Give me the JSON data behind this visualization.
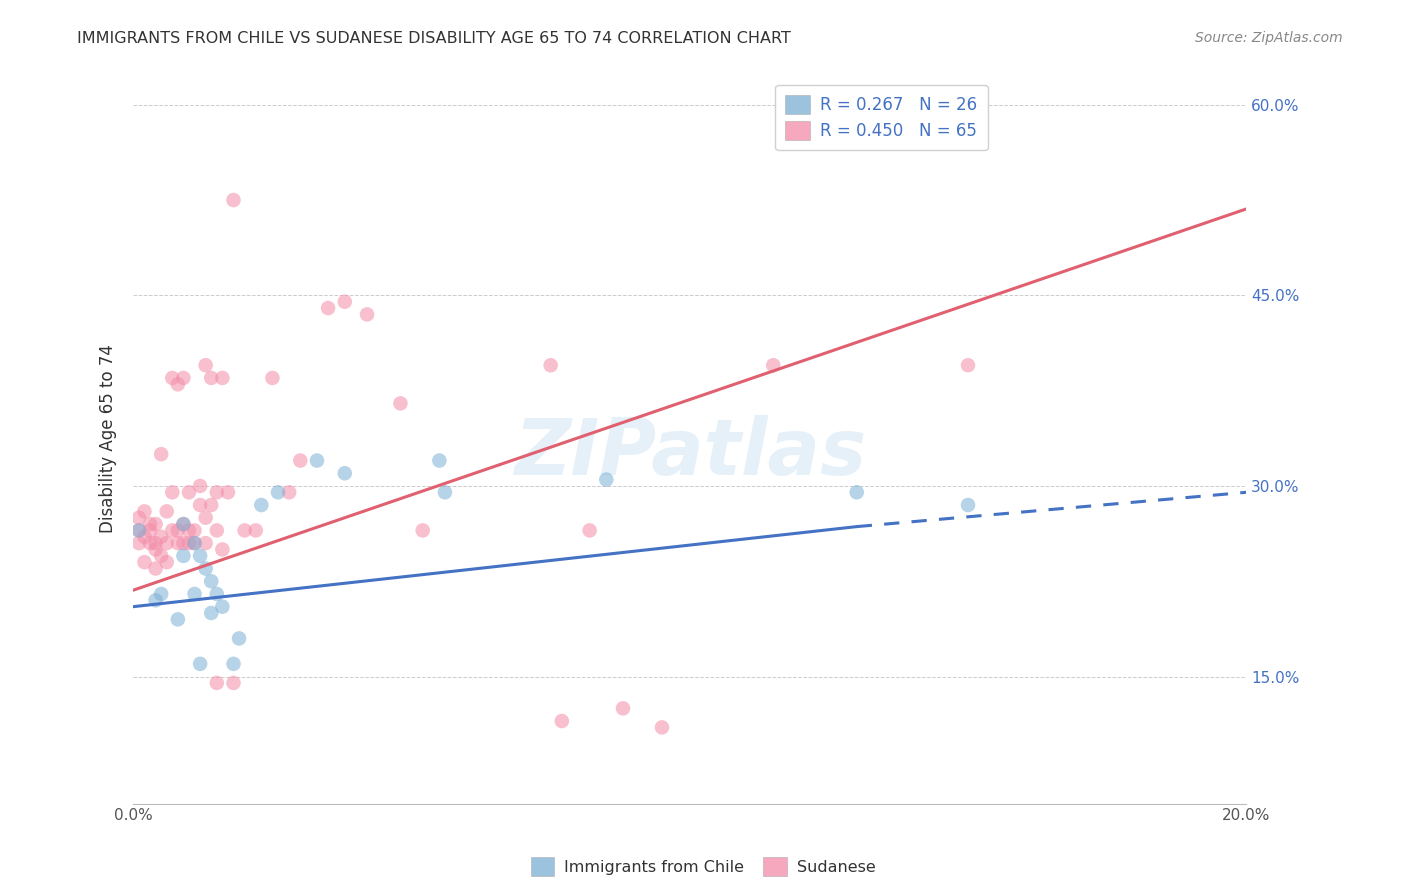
{
  "title": "IMMIGRANTS FROM CHILE VS SUDANESE DISABILITY AGE 65 TO 74 CORRELATION CHART",
  "source": "Source: ZipAtlas.com",
  "ylabel": "Disability Age 65 to 74",
  "xlim": [
    0.0,
    0.2
  ],
  "ylim": [
    0.05,
    0.625
  ],
  "xticks": [
    0.0,
    0.05,
    0.1,
    0.15,
    0.2
  ],
  "yticks": [
    0.15,
    0.3,
    0.45,
    0.6
  ],
  "legend_entries": [
    {
      "label": "R = 0.267   N = 26",
      "color": "#a8c4e0"
    },
    {
      "label": "R = 0.450   N = 65",
      "color": "#f4a7b9"
    }
  ],
  "chile_color": "#7bafd4",
  "sudanese_color": "#f48ca8",
  "chile_line_color": "#4472c4",
  "sudanese_line_color": "#e06070",
  "background_color": "#ffffff",
  "grid_color": "#cccccc",
  "chile_scatter": [
    [
      0.001,
      0.265
    ],
    [
      0.004,
      0.21
    ],
    [
      0.005,
      0.215
    ],
    [
      0.008,
      0.195
    ],
    [
      0.009,
      0.245
    ],
    [
      0.009,
      0.27
    ],
    [
      0.011,
      0.215
    ],
    [
      0.011,
      0.255
    ],
    [
      0.012,
      0.16
    ],
    [
      0.012,
      0.245
    ],
    [
      0.013,
      0.235
    ],
    [
      0.014,
      0.225
    ],
    [
      0.014,
      0.2
    ],
    [
      0.015,
      0.215
    ],
    [
      0.016,
      0.205
    ],
    [
      0.018,
      0.16
    ],
    [
      0.019,
      0.18
    ],
    [
      0.023,
      0.285
    ],
    [
      0.026,
      0.295
    ],
    [
      0.033,
      0.32
    ],
    [
      0.038,
      0.31
    ],
    [
      0.055,
      0.32
    ],
    [
      0.056,
      0.295
    ],
    [
      0.085,
      0.305
    ],
    [
      0.13,
      0.295
    ],
    [
      0.15,
      0.285
    ]
  ],
  "sudanese_scatter": [
    [
      0.001,
      0.255
    ],
    [
      0.001,
      0.265
    ],
    [
      0.001,
      0.275
    ],
    [
      0.002,
      0.24
    ],
    [
      0.002,
      0.26
    ],
    [
      0.002,
      0.28
    ],
    [
      0.003,
      0.255
    ],
    [
      0.003,
      0.265
    ],
    [
      0.003,
      0.27
    ],
    [
      0.004,
      0.235
    ],
    [
      0.004,
      0.25
    ],
    [
      0.004,
      0.255
    ],
    [
      0.004,
      0.27
    ],
    [
      0.005,
      0.245
    ],
    [
      0.005,
      0.26
    ],
    [
      0.005,
      0.325
    ],
    [
      0.006,
      0.24
    ],
    [
      0.006,
      0.255
    ],
    [
      0.006,
      0.28
    ],
    [
      0.007,
      0.265
    ],
    [
      0.007,
      0.295
    ],
    [
      0.007,
      0.385
    ],
    [
      0.008,
      0.255
    ],
    [
      0.008,
      0.265
    ],
    [
      0.008,
      0.38
    ],
    [
      0.009,
      0.255
    ],
    [
      0.009,
      0.27
    ],
    [
      0.009,
      0.385
    ],
    [
      0.01,
      0.255
    ],
    [
      0.01,
      0.265
    ],
    [
      0.01,
      0.295
    ],
    [
      0.011,
      0.255
    ],
    [
      0.011,
      0.265
    ],
    [
      0.012,
      0.285
    ],
    [
      0.012,
      0.3
    ],
    [
      0.013,
      0.255
    ],
    [
      0.013,
      0.275
    ],
    [
      0.013,
      0.395
    ],
    [
      0.014,
      0.285
    ],
    [
      0.014,
      0.385
    ],
    [
      0.015,
      0.265
    ],
    [
      0.015,
      0.295
    ],
    [
      0.015,
      0.145
    ],
    [
      0.016,
      0.25
    ],
    [
      0.016,
      0.385
    ],
    [
      0.017,
      0.295
    ],
    [
      0.018,
      0.145
    ],
    [
      0.018,
      0.525
    ],
    [
      0.02,
      0.265
    ],
    [
      0.022,
      0.265
    ],
    [
      0.025,
      0.385
    ],
    [
      0.028,
      0.295
    ],
    [
      0.03,
      0.32
    ],
    [
      0.035,
      0.44
    ],
    [
      0.038,
      0.445
    ],
    [
      0.042,
      0.435
    ],
    [
      0.048,
      0.365
    ],
    [
      0.052,
      0.265
    ],
    [
      0.075,
      0.395
    ],
    [
      0.077,
      0.115
    ],
    [
      0.082,
      0.265
    ],
    [
      0.088,
      0.125
    ],
    [
      0.095,
      0.11
    ],
    [
      0.115,
      0.395
    ],
    [
      0.15,
      0.395
    ]
  ],
  "chile_line": {
    "x0": 0.0,
    "x_break": 0.13,
    "x1": 0.2,
    "y0": 0.205,
    "y_break": 0.268,
    "y1": 0.295
  },
  "sudanese_line": {
    "x0": 0.0,
    "x1": 0.2,
    "y0": 0.218,
    "y1": 0.518
  },
  "watermark_text": "ZIPatlas",
  "marker_size": 110,
  "alpha": 0.55
}
